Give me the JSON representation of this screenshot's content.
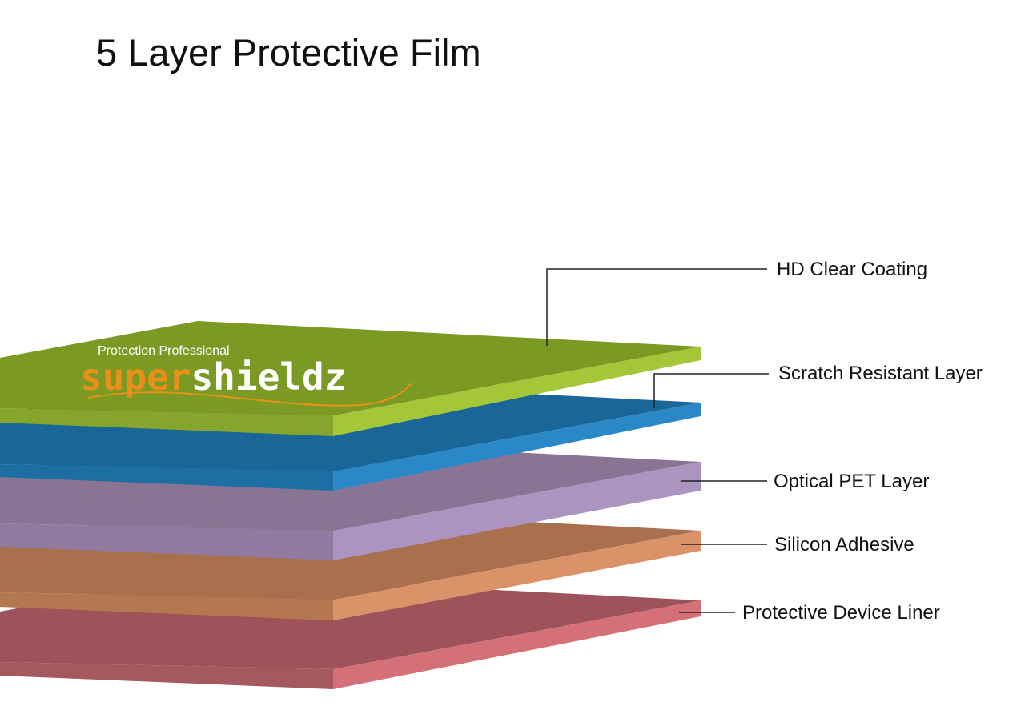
{
  "title": "5 Layer Protective Film",
  "logo": {
    "tagline": "Protection Professional",
    "brand_part1": "super",
    "brand_part2": "shieldz",
    "accent": "#e8901a"
  },
  "layers": [
    {
      "label": "HD Clear Coating",
      "top": "#7a9a24",
      "front": "#86a52c",
      "side": "#a6c63a"
    },
    {
      "label": "Scratch Resistant Layer",
      "top": "#1a6699",
      "front": "#1c6ea3",
      "side": "#2a88c8"
    },
    {
      "label": "Optical PET Layer",
      "top": "#8a7494",
      "front": "#917aa0",
      "side": "#ac94c0"
    },
    {
      "label": "Silicon Adhesive",
      "top": "#a8704c",
      "front": "#b47850",
      "side": "#dc9268"
    },
    {
      "label": "Protective Device Liner",
      "top": "#9e525a",
      "front": "#a6585f",
      "side": "#d47078"
    }
  ]
}
